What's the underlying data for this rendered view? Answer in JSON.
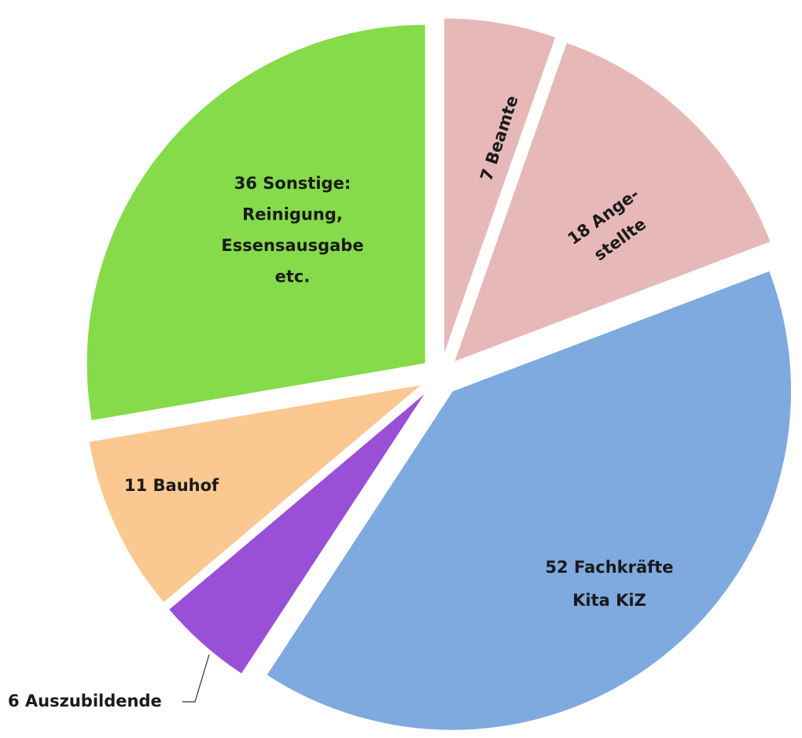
{
  "chart_data": {
    "type": "pie",
    "values": [
      7,
      18,
      52,
      6,
      11,
      36
    ],
    "value_labels": [
      [
        "7 Beamte"
      ],
      [
        "18 Ange-",
        "stellte"
      ],
      [
        "52 Fachkräfte",
        "Kita KiZ"
      ],
      [
        "6 Auszubildende"
      ],
      [
        "11 Bauhof"
      ],
      [
        "36 Sonstige:",
        "Reinigung,",
        "Essensausgabe",
        "etc."
      ]
    ],
    "colors": [
      "#e6b9b8",
      "#e6b9b8",
      "#7eaadf",
      "#9a50d6",
      "#fcc891",
      "#85db4a"
    ]
  }
}
